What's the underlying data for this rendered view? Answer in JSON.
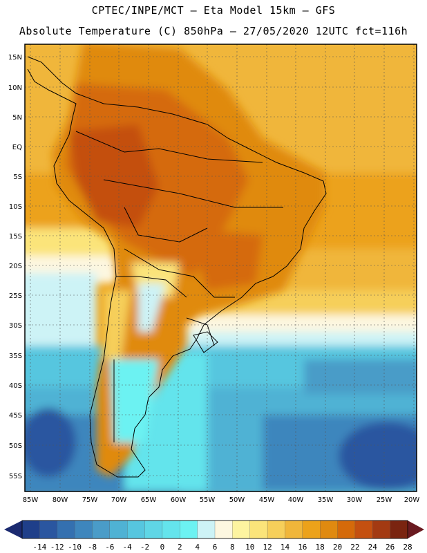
{
  "header": {
    "line1": "CPTEC/INPE/MCT –  Eta Model 15km – GFS",
    "line2": "Absolute Temperature (C) 850hPa – 27/05/2020 12UTC fct=116h"
  },
  "map": {
    "lat_labels": [
      "15N",
      "10N",
      "5N",
      "EQ",
      "5S",
      "10S",
      "15S",
      "20S",
      "25S",
      "30S",
      "35S",
      "40S",
      "45S",
      "50S",
      "55S"
    ],
    "lon_labels": [
      "85W",
      "80W",
      "75W",
      "70W",
      "65W",
      "60W",
      "55W",
      "50W",
      "45W",
      "40W",
      "35W",
      "30W",
      "25W",
      "20W"
    ]
  },
  "colorbar": {
    "labels": [
      "-14",
      "-12",
      "-10",
      "-8",
      "-6",
      "-4",
      "-2",
      "0",
      "2",
      "4",
      "6",
      "8",
      "10",
      "12",
      "14",
      "16",
      "18",
      "20",
      "22",
      "24",
      "26",
      "28"
    ],
    "colors": [
      "#1f3f8a",
      "#2a56a0",
      "#3470b0",
      "#3e86bd",
      "#4a9cc8",
      "#4fb2d4",
      "#56c6df",
      "#5fd6e6",
      "#64e4ec",
      "#6cf2f2",
      "#cdf3f6",
      "#fdf7e0",
      "#fdf4a0",
      "#fbe47a",
      "#f6cf5a",
      "#f0b63a",
      "#eca21a",
      "#e08a10",
      "#d56a0a",
      "#c45010",
      "#a33a12",
      "#7a2410"
    ],
    "end_low": "#1b2a70",
    "end_high": "#6a1a20"
  }
}
